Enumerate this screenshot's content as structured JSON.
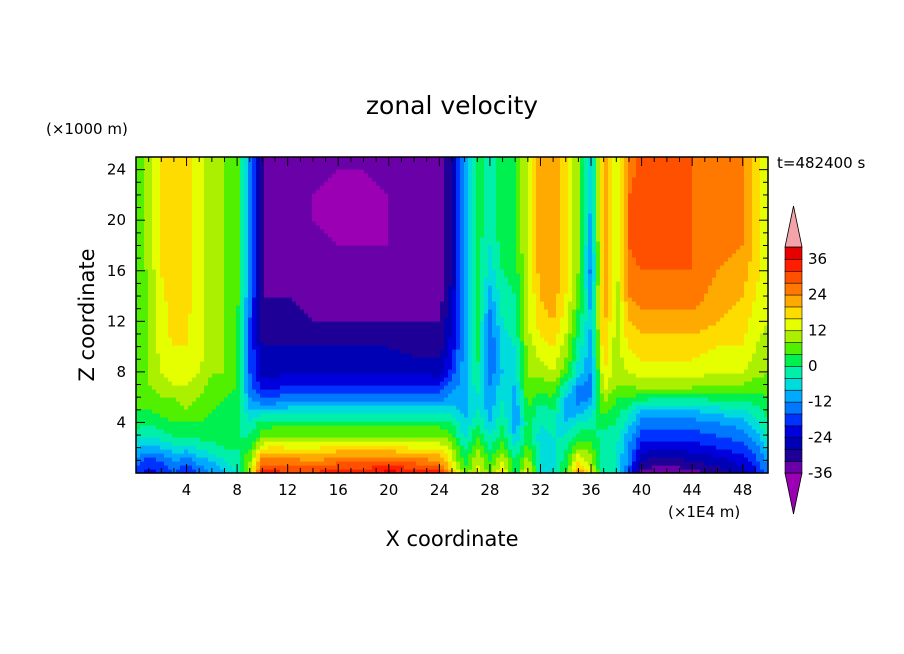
{
  "chart_data": {
    "type": "heatmap",
    "title": "zonal velocity",
    "xlabel": "X coordinate",
    "ylabel": "Z coordinate",
    "x_unit": "(×1E4 m)",
    "y_unit": "(×1000 m)",
    "time_label": "t=482400 s",
    "xlim": [
      0,
      50
    ],
    "ylim": [
      0,
      25
    ],
    "x_ticks": [
      4,
      8,
      12,
      16,
      20,
      24,
      28,
      32,
      36,
      40,
      44,
      48
    ],
    "y_ticks": [
      4,
      8,
      12,
      16,
      20,
      24
    ],
    "colorbar": {
      "ticks": [
        36,
        24,
        12,
        0,
        -12,
        -24,
        -36
      ],
      "levels": [
        -42,
        -36,
        -32,
        -28,
        -24,
        -20,
        -16,
        -12,
        -8,
        -4,
        0,
        4,
        8,
        12,
        16,
        20,
        24,
        28,
        32,
        36,
        42
      ],
      "colors": [
        "#9b00b4",
        "#6a00a8",
        "#1e0096",
        "#0000b4",
        "#0000dc",
        "#0032ff",
        "#0078ff",
        "#00aaff",
        "#00dcdc",
        "#00f0aa",
        "#00f050",
        "#50f000",
        "#aaf000",
        "#e6ff00",
        "#ffdc00",
        "#ffaa00",
        "#ff7800",
        "#ff5000",
        "#ff1e00",
        "#e60000",
        "#f4a3a8"
      ],
      "under_color": "#9b00b4",
      "over_color": "#f4a3a8"
    },
    "columns_x": [
      0,
      1,
      2,
      3,
      4,
      5,
      6,
      7,
      8,
      9,
      10,
      11,
      12,
      14,
      16,
      18,
      20,
      22,
      24,
      25,
      26,
      27,
      28,
      29,
      30,
      31,
      32,
      33,
      34,
      35,
      36,
      37,
      38,
      39,
      40,
      42,
      44,
      46,
      48,
      49,
      50
    ],
    "profile_z": [
      0,
      1,
      2,
      3,
      4,
      5,
      6,
      7,
      8,
      10,
      12,
      14,
      16,
      18,
      20,
      22,
      24,
      25
    ],
    "profiles": [
      [
        -18,
        -14,
        -8,
        -2,
        2,
        4,
        6,
        6,
        6,
        5,
        4,
        4,
        4,
        5,
        6,
        6,
        6,
        6
      ],
      [
        -22,
        -18,
        -10,
        -4,
        0,
        4,
        6,
        8,
        8,
        8,
        8,
        8,
        9,
        10,
        10,
        10,
        10,
        10
      ],
      [
        -20,
        -16,
        -8,
        -2,
        2,
        6,
        8,
        10,
        12,
        14,
        14,
        15,
        16,
        16,
        16,
        16,
        16,
        16
      ],
      [
        -16,
        -12,
        -6,
        0,
        4,
        6,
        8,
        12,
        14,
        16,
        18,
        18,
        20,
        20,
        20,
        20,
        20,
        20
      ],
      [
        -20,
        -14,
        -6,
        0,
        4,
        8,
        10,
        12,
        14,
        16,
        16,
        18,
        18,
        18,
        18,
        18,
        18,
        18
      ],
      [
        -16,
        -10,
        -4,
        2,
        4,
        6,
        8,
        10,
        12,
        14,
        14,
        14,
        14,
        14,
        14,
        14,
        14,
        14
      ],
      [
        -12,
        -8,
        -2,
        2,
        2,
        4,
        6,
        6,
        8,
        10,
        10,
        10,
        10,
        10,
        10,
        10,
        10,
        10
      ],
      [
        -8,
        -4,
        0,
        2,
        2,
        2,
        4,
        6,
        8,
        8,
        8,
        8,
        8,
        8,
        8,
        8,
        8,
        8
      ],
      [
        -4,
        -2,
        0,
        0,
        2,
        2,
        2,
        4,
        4,
        4,
        4,
        6,
        6,
        6,
        6,
        6,
        6,
        6
      ],
      [
        10,
        8,
        4,
        0,
        -4,
        -8,
        -12,
        -14,
        -16,
        -16,
        -16,
        -14,
        -12,
        -12,
        -12,
        -12,
        -12,
        -12
      ],
      [
        36,
        26,
        16,
        6,
        2,
        -8,
        -16,
        -22,
        -26,
        -28,
        -30,
        -32,
        -32,
        -32,
        -32,
        -32,
        -32,
        -32
      ],
      [
        34,
        26,
        18,
        8,
        2,
        -8,
        -16,
        -22,
        -26,
        -28,
        -30,
        -32,
        -33,
        -33,
        -34,
        -34,
        -34,
        -34
      ],
      [
        32,
        26,
        16,
        8,
        2,
        -6,
        -14,
        -20,
        -24,
        -28,
        -30,
        -32,
        -34,
        -34,
        -34,
        -34,
        -34,
        -34
      ],
      [
        32,
        24,
        16,
        8,
        2,
        -6,
        -14,
        -20,
        -24,
        -28,
        -32,
        -34,
        -34,
        -35,
        -36,
        -36,
        -35,
        -35
      ],
      [
        36,
        26,
        18,
        8,
        2,
        -6,
        -14,
        -20,
        -24,
        -28,
        -32,
        -34,
        -35,
        -36,
        -37,
        -37,
        -36,
        -36
      ],
      [
        36,
        26,
        18,
        8,
        2,
        -6,
        -14,
        -20,
        -24,
        -28,
        -32,
        -34,
        -35,
        -36,
        -37,
        -37,
        -36,
        -36
      ],
      [
        38,
        28,
        18,
        8,
        2,
        -6,
        -14,
        -20,
        -24,
        -28,
        -32,
        -34,
        -35,
        -36,
        -36,
        -36,
        -35,
        -35
      ],
      [
        36,
        26,
        16,
        8,
        2,
        -6,
        -14,
        -20,
        -24,
        -30,
        -32,
        -34,
        -34,
        -34,
        -34,
        -34,
        -34,
        -34
      ],
      [
        34,
        24,
        16,
        8,
        2,
        -6,
        -14,
        -20,
        -26,
        -30,
        -32,
        -34,
        -34,
        -34,
        -34,
        -34,
        -34,
        -34
      ],
      [
        20,
        14,
        10,
        4,
        0,
        -6,
        -10,
        -14,
        -18,
        -22,
        -24,
        -26,
        -28,
        -28,
        -28,
        -28,
        -28,
        -28
      ],
      [
        6,
        2,
        -2,
        -6,
        -8,
        -10,
        -10,
        -10,
        -10,
        -10,
        -10,
        -10,
        -10,
        -10,
        -10,
        -10,
        -10,
        -10
      ],
      [
        14,
        12,
        8,
        4,
        0,
        -4,
        -4,
        -2,
        0,
        2,
        2,
        2,
        2,
        2,
        2,
        2,
        2,
        2
      ],
      [
        6,
        4,
        0,
        -4,
        -8,
        -10,
        -12,
        -12,
        -14,
        -16,
        -14,
        -10,
        -6,
        -4,
        -2,
        -2,
        -2,
        -2
      ],
      [
        18,
        12,
        6,
        2,
        0,
        -2,
        -4,
        -6,
        -8,
        -6,
        -4,
        -2,
        0,
        2,
        2,
        2,
        2,
        2
      ],
      [
        0,
        0,
        -4,
        -8,
        -12,
        -12,
        -10,
        -8,
        -6,
        -4,
        -2,
        0,
        2,
        4,
        4,
        4,
        4,
        4
      ],
      [
        16,
        10,
        6,
        2,
        2,
        4,
        6,
        8,
        8,
        10,
        12,
        12,
        12,
        12,
        12,
        12,
        12,
        12
      ],
      [
        -4,
        -4,
        -6,
        -6,
        -4,
        -2,
        2,
        6,
        10,
        14,
        18,
        20,
        22,
        22,
        22,
        22,
        22,
        22
      ],
      [
        -4,
        -6,
        -6,
        -4,
        -2,
        0,
        4,
        8,
        12,
        16,
        20,
        22,
        24,
        24,
        24,
        24,
        24,
        24
      ],
      [
        4,
        2,
        0,
        -4,
        -8,
        -10,
        -8,
        -2,
        6,
        10,
        14,
        16,
        18,
        18,
        18,
        18,
        18,
        18
      ],
      [
        24,
        16,
        8,
        2,
        -4,
        -10,
        -14,
        -12,
        -6,
        -2,
        2,
        6,
        8,
        8,
        8,
        8,
        8,
        8
      ],
      [
        14,
        10,
        6,
        2,
        -2,
        -6,
        -12,
        -14,
        -12,
        -10,
        -8,
        -10,
        -14,
        -12,
        -10,
        -8,
        -8,
        -8
      ],
      [
        -2,
        -4,
        -4,
        -2,
        2,
        6,
        10,
        14,
        16,
        20,
        22,
        24,
        24,
        24,
        24,
        24,
        24,
        24
      ],
      [
        -4,
        -4,
        -4,
        -2,
        0,
        2,
        4,
        8,
        10,
        10,
        10,
        10,
        10,
        10,
        10,
        10,
        10,
        10
      ],
      [
        -16,
        -14,
        -12,
        -10,
        -6,
        -2,
        4,
        8,
        12,
        16,
        20,
        24,
        26,
        28,
        28,
        28,
        26,
        26
      ],
      [
        -34,
        -28,
        -22,
        -18,
        -14,
        -8,
        2,
        10,
        14,
        18,
        22,
        26,
        28,
        30,
        30,
        30,
        30,
        30
      ],
      [
        -36,
        -30,
        -24,
        -18,
        -14,
        -8,
        0,
        10,
        14,
        18,
        22,
        26,
        28,
        30,
        30,
        30,
        30,
        30
      ],
      [
        -34,
        -28,
        -22,
        -18,
        -14,
        -8,
        0,
        10,
        14,
        18,
        22,
        26,
        28,
        28,
        28,
        28,
        28,
        28
      ],
      [
        -30,
        -26,
        -20,
        -16,
        -12,
        -6,
        2,
        8,
        12,
        16,
        20,
        22,
        24,
        26,
        26,
        26,
        26,
        26
      ],
      [
        -26,
        -22,
        -18,
        -14,
        -10,
        -4,
        2,
        8,
        12,
        16,
        18,
        20,
        22,
        24,
        24,
        24,
        24,
        24
      ],
      [
        -22,
        -18,
        -14,
        -10,
        -6,
        -2,
        2,
        6,
        10,
        12,
        14,
        16,
        18,
        18,
        18,
        18,
        18,
        18
      ],
      [
        -14,
        -10,
        -6,
        -2,
        0,
        2,
        4,
        6,
        8,
        10,
        12,
        12,
        12,
        12,
        12,
        12,
        12,
        12
      ]
    ]
  }
}
